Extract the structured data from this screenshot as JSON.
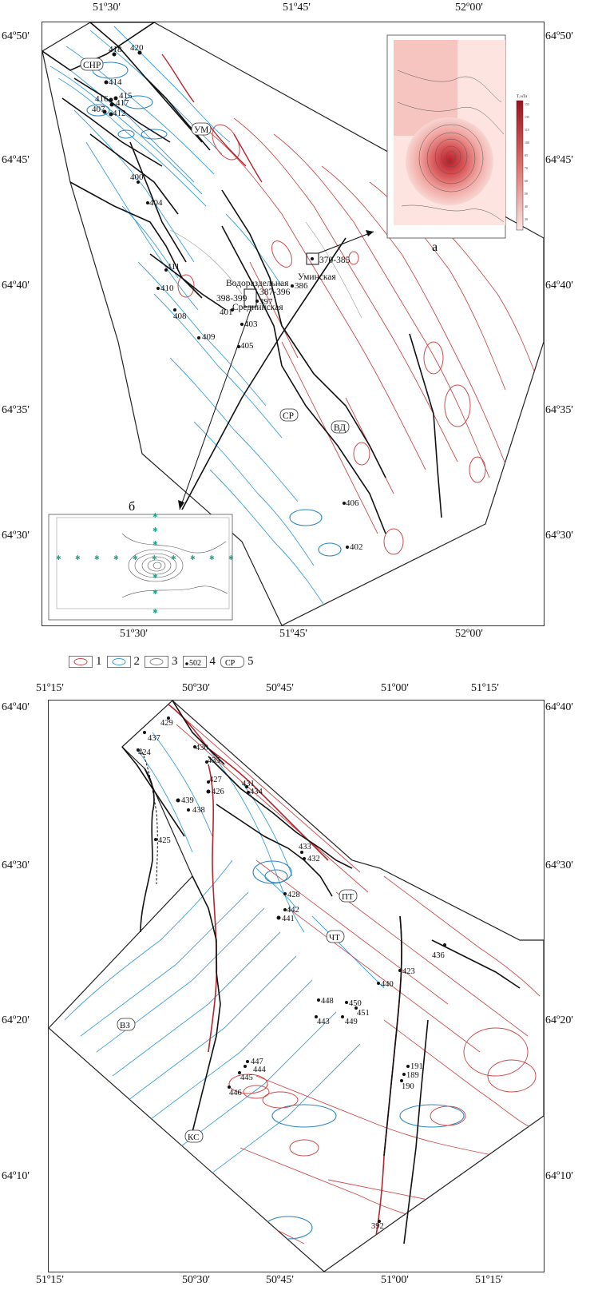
{
  "map1": {
    "lon_ticks": [
      "51º30'",
      "51º45'",
      "52º00'"
    ],
    "lat_ticks": [
      "64º50'",
      "64º45'",
      "64º40'",
      "64º35'",
      "64º30'"
    ],
    "points": [
      {
        "label": "418"
      },
      {
        "label": "420"
      },
      {
        "label": "414"
      },
      {
        "label": "416"
      },
      {
        "label": "415"
      },
      {
        "label": "417"
      },
      {
        "label": "407"
      },
      {
        "label": "412"
      },
      {
        "label": "400"
      },
      {
        "label": "404"
      },
      {
        "label": "411"
      },
      {
        "label": "410"
      },
      {
        "label": "408"
      },
      {
        "label": "409"
      },
      {
        "label": "401"
      },
      {
        "label": "403"
      },
      {
        "label": "405"
      },
      {
        "label": "397"
      },
      {
        "label": "386"
      },
      {
        "label": "406"
      },
      {
        "label": "402"
      }
    ],
    "areas": [
      "Водораздельная",
      "Среднинская",
      "Уминская"
    ],
    "ranges": [
      "387-396",
      "398-399",
      "370-385"
    ],
    "faults": [
      "СНР",
      "УМ",
      "СР",
      "ВД"
    ],
    "inset_a_label": "а",
    "inset_b_label": "б",
    "inset_a_colorbar_title": "T, нТл"
  },
  "legend": {
    "items": [
      {
        "num": "1",
        "swatch": "contour-positive"
      },
      {
        "num": "2",
        "swatch": "contour-negative"
      },
      {
        "num": "3",
        "swatch": "contour-zero"
      },
      {
        "num": "4",
        "swatch": "point-502",
        "text": "502"
      },
      {
        "num": "5",
        "swatch": "fault-label",
        "text": "СР"
      }
    ]
  },
  "map2": {
    "lon_ticks": [
      "51º15'",
      "50º30'",
      "50º45'",
      "51º00'",
      "51º15'"
    ],
    "lat_ticks": [
      "64º40'",
      "64º30'",
      "64º20'",
      "64º10'"
    ],
    "points": [
      {
        "label": "429"
      },
      {
        "label": "437"
      },
      {
        "label": "424"
      },
      {
        "label": "430"
      },
      {
        "label": "435"
      },
      {
        "label": "427"
      },
      {
        "label": "426"
      },
      {
        "label": "439"
      },
      {
        "label": "438"
      },
      {
        "label": "431"
      },
      {
        "label": "434"
      },
      {
        "label": "425"
      },
      {
        "label": "433"
      },
      {
        "label": "432"
      },
      {
        "label": "428"
      },
      {
        "label": "442"
      },
      {
        "label": "441"
      },
      {
        "label": "436"
      },
      {
        "label": "423"
      },
      {
        "label": "440"
      },
      {
        "label": "448"
      },
      {
        "label": "450"
      },
      {
        "label": "451"
      },
      {
        "label": "443"
      },
      {
        "label": "449"
      },
      {
        "label": "447"
      },
      {
        "label": "444"
      },
      {
        "label": "445"
      },
      {
        "label": "446"
      },
      {
        "label": "191"
      },
      {
        "label": "189"
      },
      {
        "label": "190"
      },
      {
        "label": "392"
      }
    ],
    "faults": [
      "ПТ",
      "ЧТ",
      "ВЗ",
      "КС"
    ]
  },
  "colors": {
    "positive": "#cf4a4a",
    "negative": "#3aa0d8",
    "fault": "#111111"
  }
}
